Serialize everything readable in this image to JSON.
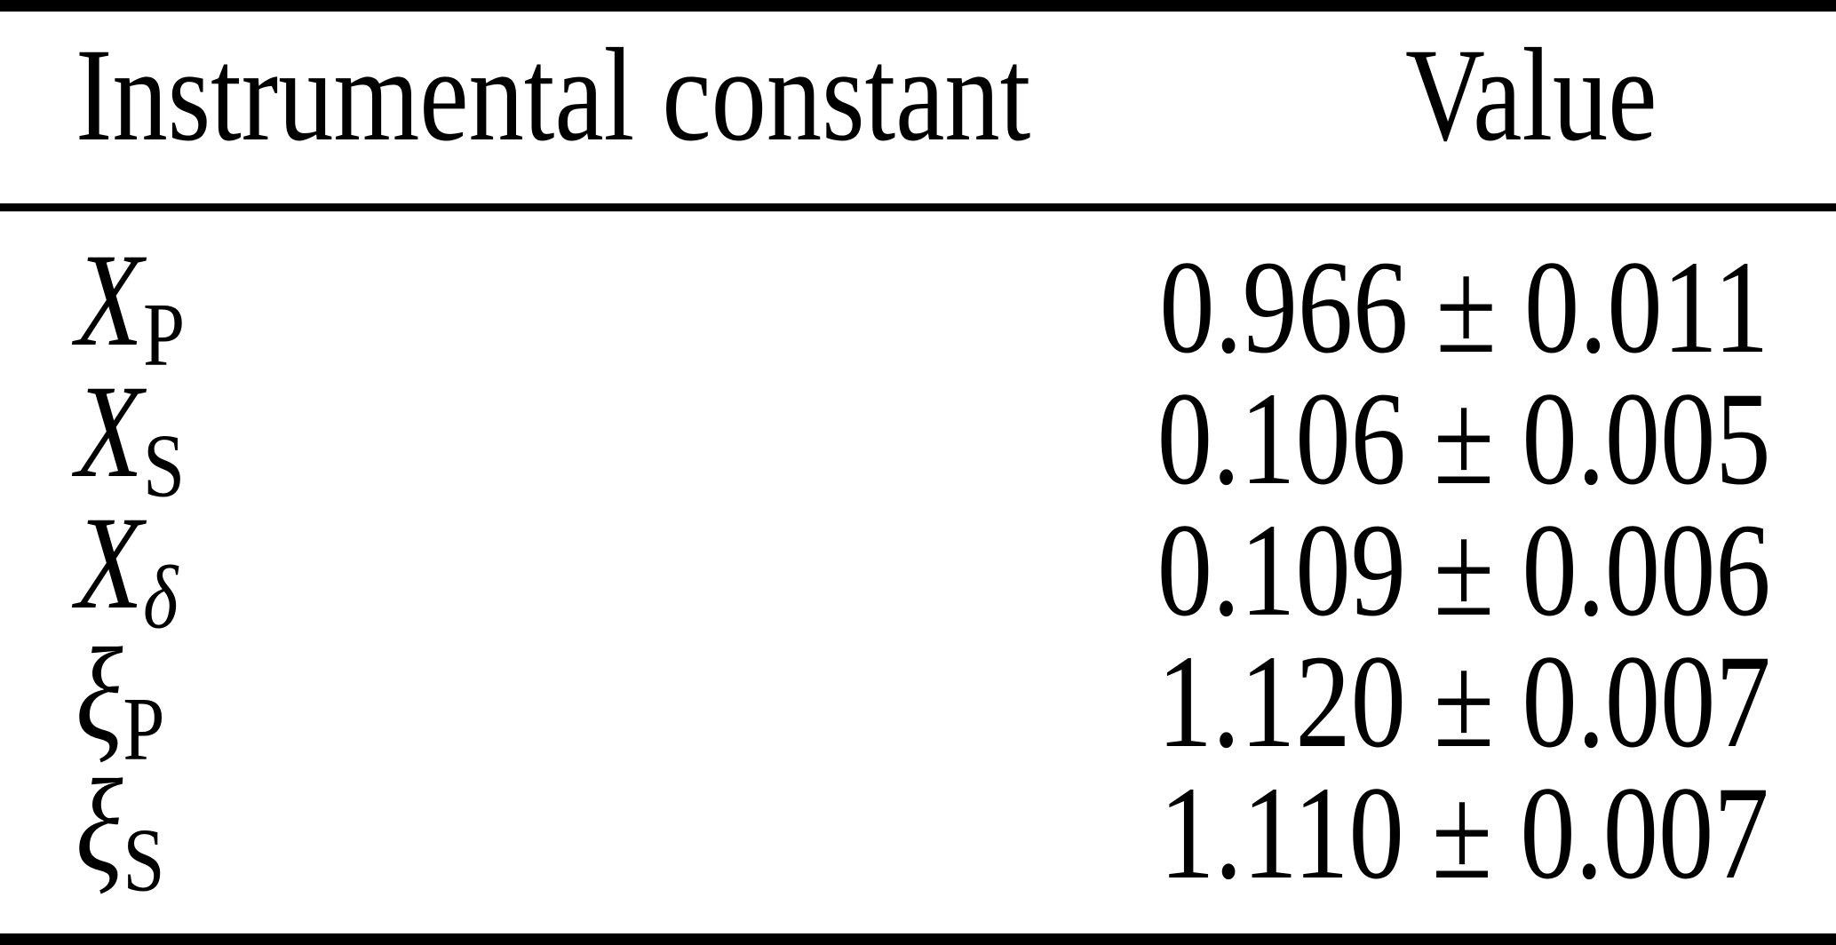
{
  "colors": {
    "background": "#ffffff",
    "text": "#000000",
    "rule": "#000000"
  },
  "table": {
    "header": {
      "col1": "Instrumental constant",
      "col2": "Value"
    },
    "rows": [
      {
        "base": "X",
        "sub": "P",
        "value": "0.966 ± 0.011"
      },
      {
        "base": "X",
        "sub": "S",
        "value": "0.106 ± 0.005"
      },
      {
        "base": "X",
        "sub": "δ",
        "value": "0.109 ± 0.006"
      },
      {
        "base": "ξ",
        "sub": "P",
        "value": "1.120 ± 0.007"
      },
      {
        "base": "ξ",
        "sub": "S",
        "value": "1.110 ± 0.007"
      }
    ]
  }
}
